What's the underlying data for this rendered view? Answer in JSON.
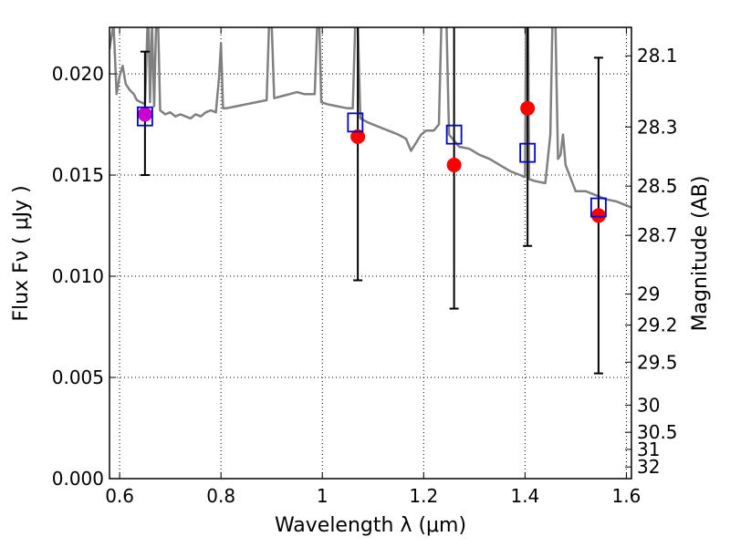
{
  "chart_data": {
    "type": "scatter",
    "title": "",
    "xlabel": "Wavelength  λ (μm)",
    "ylabel": "Flux  Fν  ( μJy )",
    "ylabel_right": "Magnitude (AB)",
    "xlim": [
      0.58,
      1.61
    ],
    "ylim": [
      0.0,
      0.0223
    ],
    "grid": true,
    "x_ticks": [
      {
        "value": 0.6,
        "label": "0.6"
      },
      {
        "value": 0.8,
        "label": "0.8"
      },
      {
        "value": 1.0,
        "label": "1"
      },
      {
        "value": 1.2,
        "label": "1.2"
      },
      {
        "value": 1.4,
        "label": "1.4"
      },
      {
        "value": 1.6,
        "label": "1.6"
      }
    ],
    "y_ticks": [
      {
        "value": 0.0,
        "label": "0.000"
      },
      {
        "value": 0.005,
        "label": "0.005"
      },
      {
        "value": 0.01,
        "label": "0.010"
      },
      {
        "value": 0.015,
        "label": "0.015"
      },
      {
        "value": 0.02,
        "label": "0.020"
      }
    ],
    "magnitude_ticks": [
      {
        "value": 28.1,
        "label": "28.1"
      },
      {
        "value": 28.3,
        "label": "28.3"
      },
      {
        "value": 28.5,
        "label": "28.5"
      },
      {
        "value": 28.7,
        "label": "28.7"
      },
      {
        "value": 29.0,
        "label": "29"
      },
      {
        "value": 29.2,
        "label": "29.2"
      },
      {
        "value": 29.5,
        "label": "29.5"
      },
      {
        "value": 30.0,
        "label": "30"
      },
      {
        "value": 30.5,
        "label": "30.5"
      },
      {
        "value": 31.0,
        "label": "31"
      },
      {
        "value": 32.0,
        "label": "32"
      }
    ],
    "series": [
      {
        "kind": "observed",
        "marker": "circle",
        "color": "#ff0000",
        "points": [
          {
            "x": 0.65,
            "y": 0.018,
            "yerr_low": 0.015,
            "yerr_high": 0.0211,
            "color": "#cc00cc"
          },
          {
            "x": 1.07,
            "y": 0.0169,
            "yerr_low": 0.0098,
            "yerr_high": 0.0225
          },
          {
            "x": 1.26,
            "y": 0.0155,
            "yerr_low": 0.0084,
            "yerr_high": 0.0225
          },
          {
            "x": 1.405,
            "y": 0.0183,
            "yerr_low": 0.0115,
            "yerr_high": 0.0225
          },
          {
            "x": 1.545,
            "y": 0.013,
            "yerr_low": 0.0052,
            "yerr_high": 0.0208
          }
        ]
      },
      {
        "kind": "model_photometry",
        "marker": "square",
        "color": "#0000cc",
        "points": [
          {
            "x": 0.65,
            "y": 0.0179
          },
          {
            "x": 1.065,
            "y": 0.0176
          },
          {
            "x": 1.26,
            "y": 0.017
          },
          {
            "x": 1.405,
            "y": 0.0161
          },
          {
            "x": 1.545,
            "y": 0.0134
          }
        ]
      },
      {
        "kind": "model_spectrum",
        "marker": "line",
        "color": "#808080",
        "points": [
          [
            0.58,
            0.0212
          ],
          [
            0.588,
            0.0225
          ],
          [
            0.594,
            0.019
          ],
          [
            0.6,
            0.0199
          ],
          [
            0.606,
            0.0204
          ],
          [
            0.612,
            0.0195
          ],
          [
            0.62,
            0.0192
          ],
          [
            0.628,
            0.019
          ],
          [
            0.634,
            0.0187
          ],
          [
            0.642,
            0.0186
          ],
          [
            0.65,
            0.0185
          ],
          [
            0.655,
            0.0225
          ],
          [
            0.657,
            0.0225
          ],
          [
            0.66,
            0.0186
          ],
          [
            0.664,
            0.0225
          ],
          [
            0.668,
            0.0184
          ],
          [
            0.672,
            0.0225
          ],
          [
            0.676,
            0.0225
          ],
          [
            0.68,
            0.0182
          ],
          [
            0.69,
            0.018
          ],
          [
            0.7,
            0.0181
          ],
          [
            0.71,
            0.0179
          ],
          [
            0.72,
            0.018
          ],
          [
            0.73,
            0.0179
          ],
          [
            0.74,
            0.0178
          ],
          [
            0.75,
            0.018
          ],
          [
            0.76,
            0.0179
          ],
          [
            0.77,
            0.0181
          ],
          [
            0.78,
            0.0182
          ],
          [
            0.79,
            0.0181
          ],
          [
            0.796,
            0.0198
          ],
          [
            0.8,
            0.0215
          ],
          [
            0.804,
            0.0183
          ],
          [
            0.81,
            0.0183
          ],
          [
            0.83,
            0.0184
          ],
          [
            0.85,
            0.0185
          ],
          [
            0.87,
            0.0186
          ],
          [
            0.89,
            0.0187
          ],
          [
            0.895,
            0.0225
          ],
          [
            0.9,
            0.0225
          ],
          [
            0.905,
            0.0188
          ],
          [
            0.92,
            0.0189
          ],
          [
            0.935,
            0.019
          ],
          [
            0.95,
            0.0191
          ],
          [
            0.965,
            0.019
          ],
          [
            0.975,
            0.019
          ],
          [
            0.985,
            0.019
          ],
          [
            0.99,
            0.0225
          ],
          [
            0.994,
            0.0225
          ],
          [
            0.998,
            0.0186
          ],
          [
            1.01,
            0.0185
          ],
          [
            1.03,
            0.0184
          ],
          [
            1.05,
            0.0183
          ],
          [
            1.06,
            0.0183
          ],
          [
            1.065,
            0.0225
          ],
          [
            1.07,
            0.0225
          ],
          [
            1.075,
            0.0178
          ],
          [
            1.09,
            0.0176
          ],
          [
            1.11,
            0.0174
          ],
          [
            1.13,
            0.0172
          ],
          [
            1.15,
            0.017
          ],
          [
            1.165,
            0.0168
          ],
          [
            1.175,
            0.0162
          ],
          [
            1.185,
            0.0166
          ],
          [
            1.195,
            0.017
          ],
          [
            1.205,
            0.0172
          ],
          [
            1.22,
            0.0172
          ],
          [
            1.23,
            0.0175
          ],
          [
            1.235,
            0.0225
          ],
          [
            1.245,
            0.0225
          ],
          [
            1.25,
            0.017
          ],
          [
            1.27,
            0.0164
          ],
          [
            1.29,
            0.0163
          ],
          [
            1.31,
            0.016
          ],
          [
            1.33,
            0.0158
          ],
          [
            1.35,
            0.0155
          ],
          [
            1.37,
            0.0152
          ],
          [
            1.39,
            0.015
          ],
          [
            1.4,
            0.0149
          ],
          [
            1.402,
            0.0225
          ],
          [
            1.406,
            0.0225
          ],
          [
            1.408,
            0.0148
          ],
          [
            1.42,
            0.0147
          ],
          [
            1.44,
            0.0146
          ],
          [
            1.45,
            0.017
          ],
          [
            1.454,
            0.0225
          ],
          [
            1.46,
            0.0225
          ],
          [
            1.465,
            0.0158
          ],
          [
            1.47,
            0.016
          ],
          [
            1.475,
            0.017
          ],
          [
            1.48,
            0.0155
          ],
          [
            1.5,
            0.0142
          ],
          [
            1.52,
            0.0142
          ],
          [
            1.54,
            0.014
          ],
          [
            1.56,
            0.0138
          ],
          [
            1.58,
            0.0137
          ],
          [
            1.6,
            0.0135
          ],
          [
            1.61,
            0.0134
          ]
        ]
      }
    ]
  }
}
